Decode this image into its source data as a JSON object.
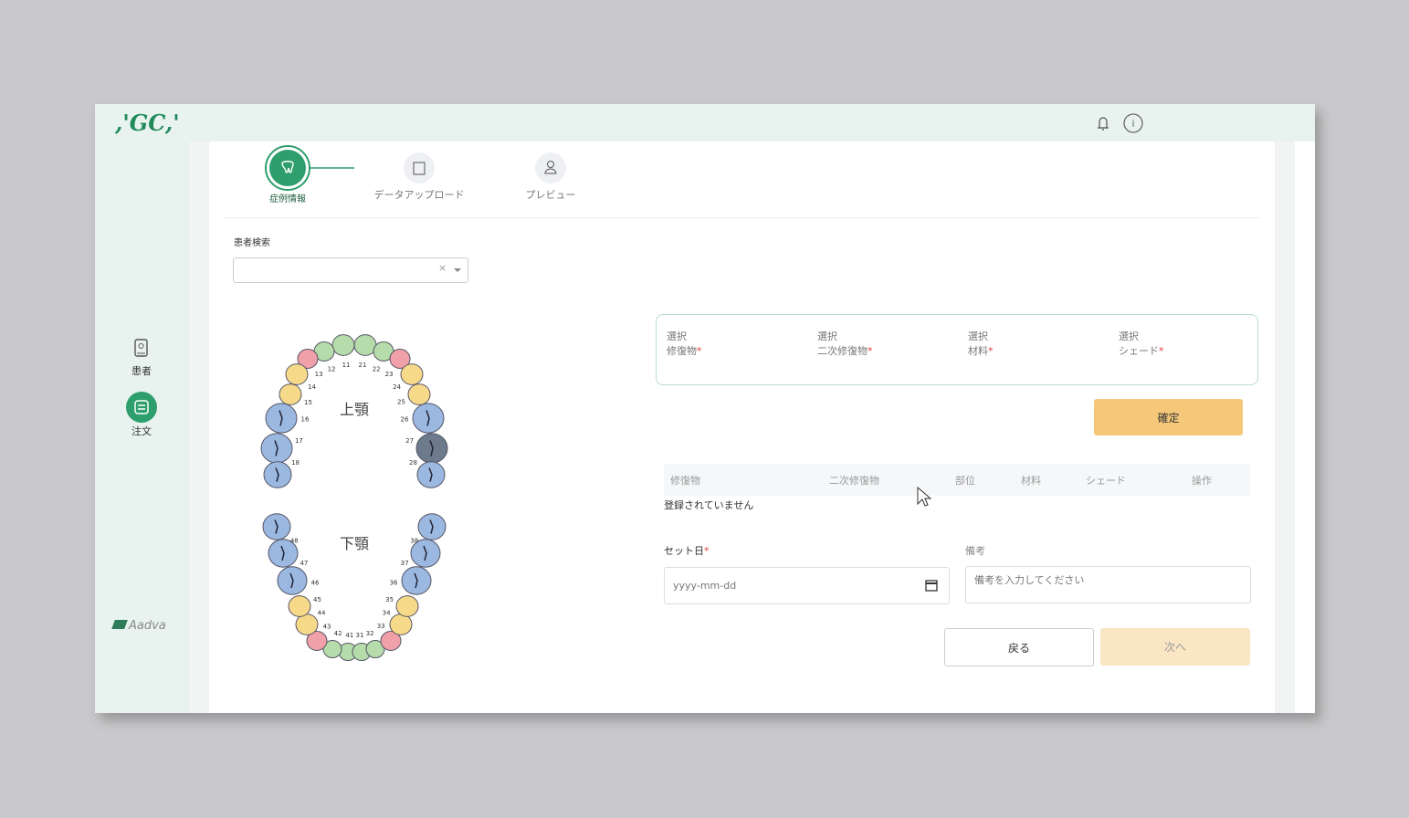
{
  "header": {
    "logo": ",'GC,'",
    "icon_info": "i"
  },
  "sidebar": {
    "items": [
      "患者",
      "注文"
    ],
    "footer_logo": "Aadva"
  },
  "steps": [
    "症例情報",
    "データアップロード",
    "プレビュー"
  ],
  "patient_search": {
    "label": "患者検索",
    "clear": "×"
  },
  "tooth_chart": {
    "upper_label": "上顎",
    "lower_label": "下顎",
    "numbers": [
      "11",
      "12",
      "13",
      "14",
      "15",
      "16",
      "17",
      "18",
      "21",
      "22",
      "23",
      "24",
      "25",
      "26",
      "27",
      "28",
      "41",
      "42",
      "43",
      "44",
      "45",
      "46",
      "47",
      "48",
      "31",
      "32",
      "33",
      "34",
      "35",
      "36",
      "37",
      "38"
    ]
  },
  "selection": {
    "prefix": "選択",
    "fields": [
      "修復物",
      "二次修復物",
      "材料",
      "シェード"
    ],
    "required_mark": "*",
    "confirm": "確定"
  },
  "table": {
    "headers": [
      "修復物",
      "二次修復物",
      "部位",
      "材料",
      "シェード",
      "操作"
    ],
    "empty": "登録されていません"
  },
  "form": {
    "set_date_label": "セット日",
    "set_date_placeholder": "yyyy-mm-dd",
    "note_label": "備考",
    "note_placeholder": "備考を入力してください"
  },
  "buttons": {
    "back": "戻る",
    "next": "次へ"
  }
}
